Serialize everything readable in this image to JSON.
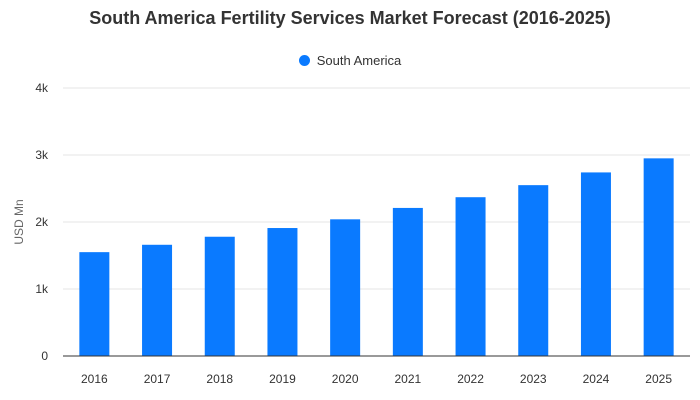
{
  "chart_data": {
    "type": "bar",
    "title": "South America Fertility Services Market Forecast (2016-2025)",
    "xlabel": "",
    "ylabel": "USD Mn",
    "categories": [
      "2016",
      "2017",
      "2018",
      "2019",
      "2020",
      "2021",
      "2022",
      "2023",
      "2024",
      "2025"
    ],
    "series": [
      {
        "name": "South America",
        "color": "#0a7aff",
        "values": [
          1550,
          1660,
          1780,
          1910,
          2040,
          2210,
          2370,
          2550,
          2740,
          2950
        ]
      }
    ],
    "ylim": [
      0,
      4000
    ],
    "yticks": [
      0,
      1000,
      2000,
      3000,
      4000
    ],
    "ytick_labels": [
      "0",
      "1k",
      "2k",
      "3k",
      "4k"
    ],
    "grid": true,
    "legend_position": "top-center"
  }
}
